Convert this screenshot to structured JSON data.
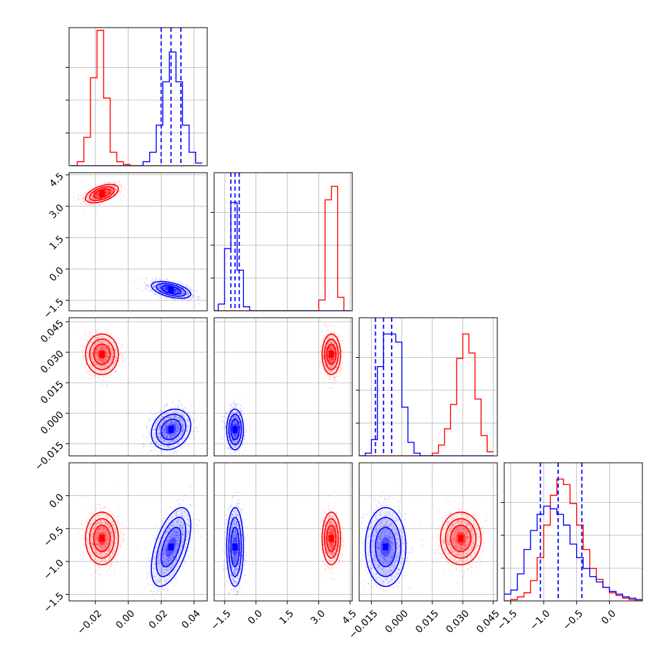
{
  "colors": {
    "red": "#ff0000",
    "blue": "#0000ff",
    "grid": "#b0b0b0"
  },
  "chart_data": {
    "type": "corner",
    "params": [
      {
        "ticks": [
          -0.02,
          0.0,
          0.02,
          0.04
        ],
        "tick_labels": [
          "−0.02",
          "0.00",
          "0.02",
          "0.04"
        ],
        "range": [
          -0.036,
          0.048
        ]
      },
      {
        "ticks": [
          -1.5,
          0.0,
          1.5,
          3.0,
          4.5
        ],
        "tick_labels": [
          "−1.5",
          "0.0",
          "1.5",
          "3.0",
          "4.5"
        ],
        "range": [
          -2.0,
          4.6
        ]
      },
      {
        "ticks": [
          -0.015,
          0.0,
          0.015,
          0.03,
          0.045
        ],
        "tick_labels": [
          "−0.015",
          "0.000",
          "0.015",
          "0.030",
          "0.045"
        ],
        "range": [
          -0.021,
          0.047
        ]
      },
      {
        "ticks": [
          -1.5,
          -1.0,
          -0.5,
          0.0
        ],
        "tick_labels": [
          "−1.5",
          "−1.0",
          "−0.5",
          "0.0"
        ],
        "range": [
          -1.6,
          0.5
        ]
      }
    ],
    "series": [
      {
        "color": "red",
        "mean": [
          -0.016,
          3.6,
          0.029,
          -0.65
        ],
        "sd": [
          0.005,
          0.22,
          0.005,
          0.2
        ],
        "corr": [
          [
            1,
            0.5,
            0,
            0
          ],
          [
            0.5,
            1,
            0,
            0
          ],
          [
            0,
            0,
            1,
            0
          ],
          [
            0,
            0,
            0,
            1
          ]
        ]
      },
      {
        "color": "blue",
        "mean": [
          0.026,
          -1.0,
          -0.008,
          -0.78
        ],
        "sd": [
          0.006,
          0.2,
          0.005,
          0.3
        ],
        "corr": [
          [
            1,
            -0.5,
            0.2,
            0.55
          ],
          [
            -0.5,
            1,
            0,
            0
          ],
          [
            0.2,
            0,
            1,
            0
          ],
          [
            0.55,
            0,
            0,
            1
          ]
        ]
      }
    ],
    "quantile_lines": {
      "color": "blue",
      "values": [
        [
          0.02,
          0.026,
          0.032
        ],
        [
          -1.2,
          -1.0,
          -0.8
        ],
        [
          -0.013,
          -0.009,
          -0.005
        ],
        [
          -1.05,
          -0.78,
          -0.42
        ]
      ]
    },
    "histograms": [
      {
        "edges": [
          -0.035,
          -0.031,
          -0.027,
          -0.023,
          -0.019,
          -0.015,
          -0.011,
          -0.007,
          -0.003,
          0.001,
          0.005,
          0.009,
          0.013,
          0.017,
          0.021,
          0.025,
          0.029,
          0.033,
          0.037,
          0.041,
          0.045
        ],
        "red": [
          0.0,
          0.03,
          0.21,
          0.65,
          1.0,
          0.5,
          0.1,
          0.03,
          0.01,
          0.0,
          0.0,
          0.0,
          0.0,
          0.0,
          0.0,
          0.0,
          0.0,
          0.0,
          0.0,
          0.0
        ],
        "blue": [
          0.0,
          0.0,
          0.0,
          0.0,
          0.0,
          0.0,
          0.0,
          0.0,
          0.0,
          0.0,
          0.0,
          0.03,
          0.1,
          0.3,
          0.62,
          0.84,
          0.62,
          0.3,
          0.1,
          0.02
        ]
      },
      {
        "edges": [
          -2.1,
          -1.8,
          -1.5,
          -1.2,
          -0.9,
          -0.6,
          -0.3,
          0.0,
          0.3,
          0.6,
          0.9,
          1.2,
          1.5,
          1.8,
          2.1,
          2.4,
          2.7,
          3.0,
          3.3,
          3.6,
          3.9,
          4.2,
          4.5
        ],
        "red": [
          0.0,
          0.0,
          0.0,
          0.0,
          0.0,
          0.0,
          0.0,
          0.0,
          0.0,
          0.0,
          0.0,
          0.0,
          0.0,
          0.0,
          0.0,
          0.0,
          0.0,
          0.08,
          0.82,
          0.92,
          0.1,
          0.0
        ],
        "blue": [
          0.0,
          0.05,
          0.46,
          0.8,
          0.3,
          0.03,
          0.0,
          0.0,
          0.0,
          0.0,
          0.0,
          0.0,
          0.0,
          0.0,
          0.0,
          0.0,
          0.0,
          0.0,
          0.0,
          0.0,
          0.0,
          0.0
        ]
      },
      {
        "edges": [
          -0.021,
          -0.018,
          -0.015,
          -0.012,
          -0.009,
          -0.006,
          -0.003,
          0.0,
          0.003,
          0.006,
          0.009,
          0.012,
          0.015,
          0.018,
          0.021,
          0.024,
          0.027,
          0.03,
          0.033,
          0.036,
          0.039,
          0.042,
          0.045
        ],
        "red": [
          0.0,
          0.0,
          0.0,
          0.0,
          0.0,
          0.0,
          0.0,
          0.0,
          0.0,
          0.0,
          0.0,
          0.0,
          0.02,
          0.08,
          0.2,
          0.38,
          0.72,
          0.9,
          0.76,
          0.42,
          0.15,
          0.03
        ],
        "blue": [
          0.0,
          0.02,
          0.12,
          0.66,
          0.9,
          0.9,
          0.84,
          0.36,
          0.1,
          0.02,
          0.0,
          0.0,
          0.0,
          0.0,
          0.0,
          0.0,
          0.0,
          0.0,
          0.0,
          0.0,
          0.0,
          0.0
        ]
      },
      {
        "edges": [
          -1.6,
          -1.5,
          -1.4,
          -1.3,
          -1.2,
          -1.1,
          -1.0,
          -0.9,
          -0.8,
          -0.7,
          -0.6,
          -0.5,
          -0.4,
          -0.3,
          -0.2,
          -0.1,
          0.0,
          0.1,
          0.2,
          0.3,
          0.4,
          0.5
        ],
        "red": [
          0.0,
          0.01,
          0.03,
          0.06,
          0.15,
          0.32,
          0.56,
          0.78,
          0.9,
          0.86,
          0.72,
          0.56,
          0.38,
          0.24,
          0.16,
          0.1,
          0.06,
          0.04,
          0.02,
          0.01,
          0.0
        ],
        "blue": [
          0.05,
          0.08,
          0.2,
          0.38,
          0.52,
          0.64,
          0.7,
          0.68,
          0.64,
          0.56,
          0.42,
          0.32,
          0.24,
          0.18,
          0.14,
          0.1,
          0.07,
          0.05,
          0.03,
          0.02,
          0.01
        ]
      }
    ]
  }
}
